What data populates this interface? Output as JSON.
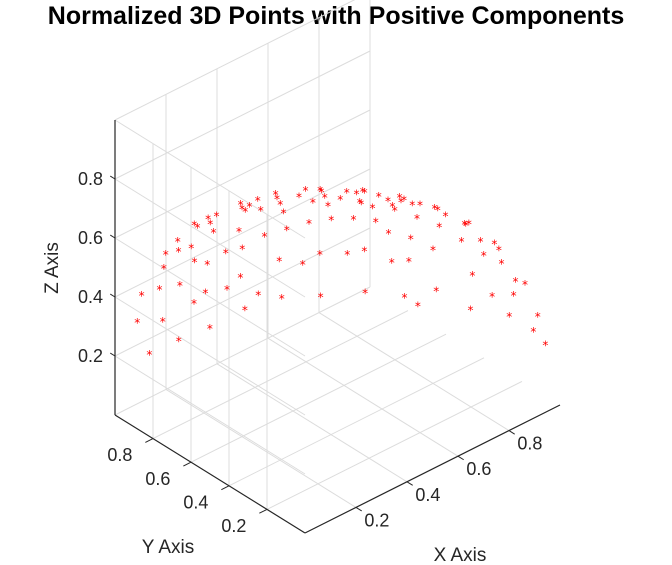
{
  "chart_data": {
    "type": "scatter3d",
    "title": "Normalized 3D Points with Positive Components",
    "xlabel": "X Axis",
    "ylabel": "Y Axis",
    "zlabel": "Z Axis",
    "xlim": [
      0,
      1
    ],
    "ylim": [
      0,
      1
    ],
    "zlim": [
      0,
      1
    ],
    "x_ticks": [
      "0.2",
      "0.4",
      "0.6",
      "0.8"
    ],
    "y_ticks": [
      "0.2",
      "0.4",
      "0.6",
      "0.8"
    ],
    "z_ticks": [
      "0.2",
      "0.4",
      "0.6",
      "0.8"
    ],
    "grid": true,
    "marker": "*",
    "marker_color": "#ff0000",
    "points": [
      [
        0.95,
        0.05,
        0.3
      ],
      [
        0.9,
        0.1,
        0.42
      ],
      [
        0.85,
        0.2,
        0.49
      ],
      [
        0.8,
        0.15,
        0.58
      ],
      [
        0.92,
        0.25,
        0.3
      ],
      [
        0.75,
        0.3,
        0.59
      ],
      [
        0.7,
        0.1,
        0.7
      ],
      [
        0.6,
        0.2,
        0.77
      ],
      [
        0.55,
        0.35,
        0.76
      ],
      [
        0.5,
        0.15,
        0.85
      ],
      [
        0.45,
        0.3,
        0.84
      ],
      [
        0.4,
        0.1,
        0.91
      ],
      [
        0.35,
        0.25,
        0.9
      ],
      [
        0.3,
        0.4,
        0.87
      ],
      [
        0.25,
        0.15,
        0.96
      ],
      [
        0.2,
        0.3,
        0.93
      ],
      [
        0.15,
        0.45,
        0.88
      ],
      [
        0.1,
        0.6,
        0.79
      ],
      [
        0.05,
        0.8,
        0.6
      ],
      [
        0.1,
        0.9,
        0.42
      ],
      [
        0.2,
        0.85,
        0.49
      ],
      [
        0.3,
        0.75,
        0.59
      ],
      [
        0.4,
        0.65,
        0.65
      ],
      [
        0.5,
        0.55,
        0.67
      ],
      [
        0.6,
        0.45,
        0.66
      ],
      [
        0.7,
        0.35,
        0.62
      ],
      [
        0.8,
        0.4,
        0.45
      ],
      [
        0.85,
        0.45,
        0.27
      ],
      [
        0.75,
        0.55,
        0.37
      ],
      [
        0.65,
        0.65,
        0.4
      ],
      [
        0.55,
        0.75,
        0.37
      ],
      [
        0.45,
        0.85,
        0.27
      ],
      [
        0.35,
        0.88,
        0.32
      ],
      [
        0.25,
        0.92,
        0.3
      ],
      [
        0.15,
        0.95,
        0.27
      ],
      [
        0.05,
        0.95,
        0.31
      ],
      [
        0.1,
        0.7,
        0.71
      ],
      [
        0.2,
        0.6,
        0.77
      ],
      [
        0.3,
        0.55,
        0.78
      ],
      [
        0.4,
        0.45,
        0.8
      ],
      [
        0.5,
        0.4,
        0.77
      ],
      [
        0.6,
        0.3,
        0.74
      ],
      [
        0.7,
        0.2,
        0.69
      ],
      [
        0.8,
        0.25,
        0.54
      ],
      [
        0.88,
        0.3,
        0.37
      ],
      [
        0.93,
        0.15,
        0.34
      ],
      [
        0.97,
        0.1,
        0.22
      ],
      [
        0.98,
        0.05,
        0.19
      ],
      [
        0.65,
        0.5,
        0.57
      ],
      [
        0.55,
        0.6,
        0.58
      ],
      [
        0.45,
        0.7,
        0.55
      ],
      [
        0.35,
        0.8,
        0.49
      ],
      [
        0.25,
        0.85,
        0.46
      ],
      [
        0.15,
        0.8,
        0.58
      ],
      [
        0.08,
        0.85,
        0.52
      ],
      [
        0.12,
        0.5,
        0.86
      ],
      [
        0.22,
        0.45,
        0.87
      ],
      [
        0.32,
        0.35,
        0.88
      ],
      [
        0.42,
        0.25,
        0.87
      ],
      [
        0.52,
        0.2,
        0.83
      ],
      [
        0.62,
        0.15,
        0.77
      ],
      [
        0.72,
        0.12,
        0.68
      ],
      [
        0.82,
        0.08,
        0.57
      ],
      [
        0.9,
        0.05,
        0.43
      ],
      [
        0.95,
        0.2,
        0.24
      ],
      [
        0.78,
        0.5,
        0.38
      ],
      [
        0.68,
        0.6,
        0.42
      ],
      [
        0.58,
        0.7,
        0.41
      ],
      [
        0.48,
        0.78,
        0.4
      ],
      [
        0.38,
        0.85,
        0.36
      ],
      [
        0.28,
        0.9,
        0.33
      ],
      [
        0.18,
        0.9,
        0.4
      ],
      [
        0.06,
        0.75,
        0.66
      ],
      [
        0.05,
        0.65,
        0.76
      ],
      [
        0.08,
        0.4,
        0.91
      ],
      [
        0.18,
        0.2,
        0.96
      ],
      [
        0.28,
        0.08,
        0.96
      ],
      [
        0.38,
        0.05,
        0.92
      ],
      [
        0.48,
        0.08,
        0.87
      ],
      [
        0.58,
        0.08,
        0.81
      ],
      [
        0.68,
        0.05,
        0.73
      ],
      [
        0.78,
        0.05,
        0.62
      ],
      [
        0.86,
        0.12,
        0.49
      ],
      [
        0.91,
        0.35,
        0.22
      ],
      [
        0.83,
        0.52,
        0.2
      ],
      [
        0.72,
        0.65,
        0.24
      ],
      [
        0.62,
        0.75,
        0.23
      ],
      [
        0.52,
        0.82,
        0.24
      ],
      [
        0.42,
        0.88,
        0.22
      ],
      [
        0.32,
        0.93,
        0.18
      ],
      [
        0.22,
        0.96,
        0.17
      ],
      [
        0.12,
        0.98,
        0.16
      ],
      [
        0.03,
        0.9,
        0.43
      ],
      [
        0.03,
        0.55,
        0.83
      ],
      [
        0.05,
        0.3,
        0.95
      ],
      [
        0.35,
        0.6,
        0.72
      ],
      [
        0.45,
        0.5,
        0.74
      ],
      [
        0.55,
        0.45,
        0.7
      ],
      [
        0.25,
        0.65,
        0.72
      ],
      [
        0.15,
        0.7,
        0.7
      ],
      [
        0.65,
        0.4,
        0.65
      ],
      [
        0.75,
        0.45,
        0.49
      ],
      [
        0.8,
        0.55,
        0.23
      ],
      [
        0.7,
        0.5,
        0.51
      ],
      [
        0.6,
        0.55,
        0.58
      ],
      [
        0.5,
        0.65,
        0.57
      ],
      [
        0.4,
        0.75,
        0.53
      ],
      [
        0.3,
        0.82,
        0.49
      ],
      [
        0.2,
        0.75,
        0.63
      ],
      [
        0.1,
        0.8,
        0.59
      ]
    ]
  }
}
